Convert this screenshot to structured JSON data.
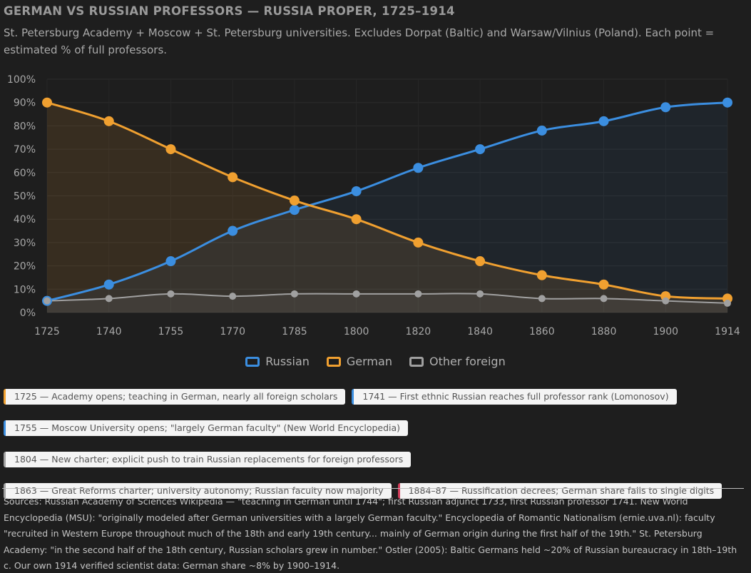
{
  "title": "GERMAN VS RUSSIAN PROFESSORS — RUSSIA PROPER, 1725–1914",
  "subtitle": "St. Petersburg Academy + Moscow + St. Petersburg universities. Excludes Dorpat (Baltic) and Warsaw/Vilnius (Poland). Each point = estimated % of full professors.",
  "chart_data": {
    "type": "line",
    "categories": [
      "1725",
      "1740",
      "1755",
      "1770",
      "1785",
      "1800",
      "1820",
      "1840",
      "1860",
      "1880",
      "1900",
      "1914"
    ],
    "series": [
      {
        "name": "Russian",
        "color": "#3b8ee0",
        "values": [
          5,
          12,
          22,
          35,
          44,
          52,
          62,
          70,
          78,
          82,
          88,
          90
        ]
      },
      {
        "name": "German",
        "color": "#f0a030",
        "values": [
          90,
          82,
          70,
          58,
          48,
          40,
          30,
          22,
          16,
          12,
          7,
          6
        ]
      },
      {
        "name": "Other foreign",
        "color": "#a0a0a0",
        "values": [
          5,
          6,
          8,
          7,
          8,
          8,
          8,
          8,
          6,
          6,
          5,
          4
        ]
      }
    ],
    "ylim": [
      0,
      100
    ],
    "y_ticks": [
      "0%",
      "10%",
      "20%",
      "30%",
      "40%",
      "50%",
      "60%",
      "70%",
      "80%",
      "90%",
      "100%"
    ],
    "xlabel": "",
    "ylabel": "",
    "legend_position": "bottom"
  },
  "legend": [
    {
      "label": "Russian",
      "color": "#3b8ee0"
    },
    {
      "label": "German",
      "color": "#f0a030"
    },
    {
      "label": "Other foreign",
      "color": "#a0a0a0"
    }
  ],
  "events": [
    {
      "label": "1725 — Academy opens; teaching in German, nearly all foreign scholars",
      "color": "#f0a030"
    },
    {
      "label": "1741 — First ethnic Russian reaches full professor rank (Lomonosov)",
      "color": "#3b8ee0"
    },
    {
      "label": "1755 — Moscow University opens; \"largely German faculty\" (New World Encyclopedia)",
      "color": "#3b8ee0"
    },
    {
      "label": "1804 — New charter; explicit push to train Russian replacements for foreign professors",
      "color": "#a0a0a0"
    },
    {
      "label": "1863 — Great Reforms charter; university autonomy; Russian faculty now majority",
      "color": "#a0a0a0"
    },
    {
      "label": "1884–87 — Russification decrees; German share falls to single digits",
      "color": "#d23c5a"
    }
  ],
  "sources": "Sources: Russian Academy of Sciences Wikipedia — \"teaching in German until 1744\"; first Russian adjunct 1733, first Russian professor 1741. New World Encyclopedia (MSU): \"originally modeled after German universities with a largely German faculty.\" Encyclopedia of Romantic Nationalism (ernie.uva.nl): faculty \"recruited in Western Europe throughout much of the 18th and early 19th century... mainly of German origin during the first half of the 19th.\" St. Petersburg Academy: \"in the second half of the 18th century, Russian scholars grew in number.\" Ostler (2005): Baltic Germans held ~20% of Russian bureaucracy in 18th–19th c. Our own 1914 verified scientist data: German share ~8% by 1900–1914."
}
